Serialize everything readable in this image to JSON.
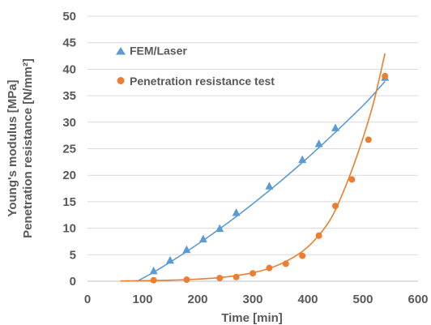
{
  "chart_data": {
    "type": "scatter",
    "title": "",
    "xlabel": "Time [min]",
    "ylabel_line1": "Young's modulus [MPa]",
    "ylabel_line2": "Penetration resistance [N/mm²]",
    "xlim": [
      0,
      600
    ],
    "ylim": [
      0,
      50
    ],
    "xticks": [
      0,
      100,
      200,
      300,
      400,
      500,
      600
    ],
    "yticks": [
      0,
      5,
      10,
      15,
      20,
      25,
      30,
      35,
      40,
      45,
      50
    ],
    "grid": "horizontal",
    "legend_position": "top-left",
    "series": [
      {
        "name": "FEM/Laser",
        "marker": "triangle",
        "color": "#5B9BD5",
        "x": [
          120,
          150,
          180,
          210,
          240,
          270,
          330,
          390,
          420,
          450,
          540
        ],
        "y": [
          2,
          4,
          6,
          8,
          10,
          13,
          18,
          23,
          26,
          29,
          38.5
        ],
        "trendline": {
          "x": [
            90,
            120,
            150,
            180,
            210,
            240,
            270,
            300,
            330,
            360,
            390,
            420,
            450,
            480,
            510,
            540
          ],
          "y": [
            0,
            1.7,
            3.6,
            5.6,
            7.7,
            9.9,
            12.2,
            14.6,
            17.1,
            19.7,
            22.4,
            25.2,
            28.1,
            31.1,
            34.2,
            37.7
          ]
        }
      },
      {
        "name": "Penetration resistance test",
        "marker": "circle",
        "color": "#ED7D31",
        "x": [
          120,
          180,
          240,
          270,
          300,
          330,
          360,
          390,
          420,
          450,
          480,
          510,
          540
        ],
        "y": [
          0.2,
          0.3,
          0.6,
          0.8,
          1.5,
          2.5,
          3.3,
          4.8,
          8.6,
          14.2,
          19.2,
          26.7,
          38.7
        ],
        "trendline": {
          "x": [
            60,
            100,
            150,
            200,
            250,
            300,
            340,
            380,
            410,
            440,
            460,
            480,
            500,
            520,
            540
          ],
          "y": [
            0.05,
            0.1,
            0.2,
            0.4,
            0.8,
            1.6,
            2.8,
            4.9,
            7.5,
            11.5,
            15.8,
            21.0,
            27.0,
            34.0,
            43.0
          ]
        }
      }
    ]
  }
}
